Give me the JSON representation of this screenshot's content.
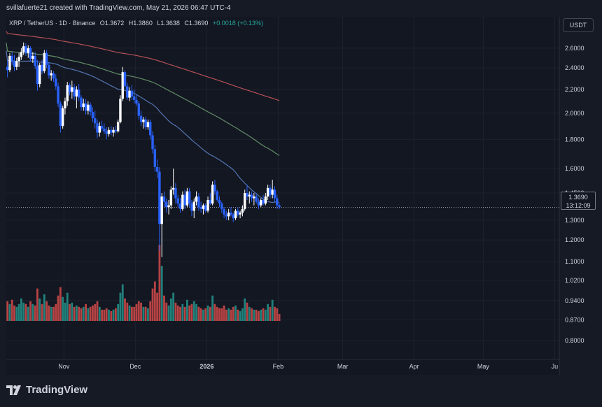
{
  "header": {
    "attribution": "svillafuerte21 created with TradingView.com, May 21, 2026 06:47 UTC-4"
  },
  "legend": {
    "symbol": "XRP / TetherUS · 1D · Binance",
    "open": "O1.3672",
    "high": "H1.3860",
    "low": "L1.3638",
    "close": "C1.3690",
    "change": "+0.0018 (+0.13%)"
  },
  "currency_button": "USDT",
  "price_tag": {
    "price": "1.3690",
    "countdown": "13:12:09"
  },
  "logo_text": "TradingView",
  "colors": {
    "background": "#131722",
    "up_candle": "#ffffff",
    "down_candle": "#2962ff",
    "up_volume": "#26a69a",
    "down_volume": "#ef5350",
    "ma_short": "#5b7fc0",
    "ma_mid": "#6a9a6e",
    "ma_long": "#c7575a",
    "grid": "#1e222d",
    "text": "#d1d4dc"
  },
  "chart_data": {
    "type": "candlestick",
    "title": "XRP / TetherUS · 1D · Binance",
    "y_scale": "log",
    "ylim": [
      0.75,
      2.95
    ],
    "y_ticks": [
      2.6,
      2.4,
      2.2,
      2.0,
      1.8,
      1.6,
      1.45,
      1.3,
      1.2,
      1.1,
      1.02,
      0.94,
      0.87,
      0.8
    ],
    "y_tick_labels": [
      "2.6000",
      "2.4000",
      "2.2000",
      "2.0000",
      "1.8000",
      "1.6000",
      "1.4500",
      "1.3000",
      "1.2000",
      "1.1000",
      "1.0200",
      "0.9400",
      "0.8700",
      "0.8000"
    ],
    "x_labels": [
      "Nov",
      "Dec",
      "2026",
      "Feb",
      "Mar",
      "Apr",
      "May",
      "Ju"
    ],
    "x_label_days": [
      25,
      56,
      87,
      118,
      146,
      177,
      207,
      238
    ],
    "x_range_days": [
      0,
      240
    ],
    "grid": true,
    "ohlc": [
      [
        2.41,
        2.47,
        2.31,
        2.38
      ],
      [
        2.38,
        2.55,
        2.36,
        2.52
      ],
      [
        2.52,
        2.56,
        2.43,
        2.46
      ],
      [
        2.46,
        2.53,
        2.37,
        2.41
      ],
      [
        2.41,
        2.5,
        2.38,
        2.47
      ],
      [
        2.47,
        2.55,
        2.41,
        2.51
      ],
      [
        2.51,
        2.6,
        2.48,
        2.56
      ],
      [
        2.56,
        2.66,
        2.53,
        2.62
      ],
      [
        2.62,
        2.65,
        2.52,
        2.55
      ],
      [
        2.55,
        2.63,
        2.5,
        2.6
      ],
      [
        2.6,
        2.62,
        2.46,
        2.49
      ],
      [
        2.49,
        2.56,
        2.45,
        2.52
      ],
      [
        2.52,
        2.56,
        2.39,
        2.42
      ],
      [
        2.42,
        2.48,
        2.19,
        2.25
      ],
      [
        2.25,
        2.45,
        2.22,
        2.43
      ],
      [
        2.43,
        2.48,
        2.34,
        2.37
      ],
      [
        2.37,
        2.58,
        2.35,
        2.55
      ],
      [
        2.55,
        2.58,
        2.4,
        2.43
      ],
      [
        2.43,
        2.46,
        2.3,
        2.33
      ],
      [
        2.33,
        2.38,
        2.28,
        2.35
      ],
      [
        2.35,
        2.37,
        2.27,
        2.3
      ],
      [
        2.3,
        2.34,
        2.2,
        2.23
      ],
      [
        2.23,
        2.26,
        2.05,
        2.08
      ],
      [
        2.08,
        2.1,
        1.85,
        1.9
      ],
      [
        1.9,
        2.06,
        1.88,
        2.04
      ],
      [
        2.04,
        2.13,
        1.99,
        2.1
      ],
      [
        2.1,
        2.27,
        2.06,
        2.24
      ],
      [
        2.24,
        2.26,
        2.15,
        2.18
      ],
      [
        2.18,
        2.28,
        2.12,
        2.22
      ],
      [
        2.22,
        2.25,
        2.11,
        2.14
      ],
      [
        2.14,
        2.23,
        2.04,
        2.2
      ],
      [
        2.2,
        2.25,
        2.1,
        2.13
      ],
      [
        2.13,
        2.15,
        2.02,
        2.05
      ],
      [
        2.05,
        2.12,
        2.02,
        2.08
      ],
      [
        2.08,
        2.12,
        1.99,
        2.02
      ],
      [
        2.02,
        2.1,
        1.99,
        2.07
      ],
      [
        2.07,
        2.09,
        1.98,
        2.01
      ],
      [
        2.01,
        2.05,
        1.93,
        1.96
      ],
      [
        1.96,
        2.02,
        1.88,
        1.92
      ],
      [
        1.92,
        1.95,
        1.81,
        1.85
      ],
      [
        1.85,
        1.93,
        1.82,
        1.9
      ],
      [
        1.9,
        1.94,
        1.86,
        1.88
      ],
      [
        1.88,
        1.92,
        1.84,
        1.86
      ],
      [
        1.86,
        1.89,
        1.8,
        1.84
      ],
      [
        1.84,
        1.89,
        1.82,
        1.87
      ],
      [
        1.87,
        1.9,
        1.83,
        1.85
      ],
      [
        1.85,
        1.89,
        1.82,
        1.87
      ],
      [
        1.87,
        1.9,
        1.84,
        1.86
      ],
      [
        1.86,
        1.95,
        1.85,
        1.93
      ],
      [
        1.93,
        2.15,
        1.92,
        2.12
      ],
      [
        2.12,
        2.41,
        2.1,
        2.36
      ],
      [
        2.36,
        2.38,
        2.2,
        2.23
      ],
      [
        2.23,
        2.26,
        2.11,
        2.13
      ],
      [
        2.13,
        2.22,
        2.1,
        2.19
      ],
      [
        2.19,
        2.24,
        2.11,
        2.14
      ],
      [
        2.14,
        2.2,
        2.08,
        2.11
      ],
      [
        2.11,
        2.16,
        2.06,
        2.08
      ],
      [
        2.08,
        2.1,
        1.95,
        1.98
      ],
      [
        1.98,
        2.02,
        1.9,
        1.93
      ],
      [
        1.93,
        1.97,
        1.88,
        1.95
      ],
      [
        1.95,
        1.97,
        1.87,
        1.89
      ],
      [
        1.89,
        1.95,
        1.87,
        1.93
      ],
      [
        1.93,
        1.95,
        1.8,
        1.83
      ],
      [
        1.83,
        1.86,
        1.7,
        1.73
      ],
      [
        1.73,
        1.76,
        1.58,
        1.61
      ],
      [
        1.61,
        1.66,
        1.54,
        1.58
      ],
      [
        1.58,
        1.61,
        1.15,
        1.28
      ],
      [
        1.28,
        1.45,
        1.12,
        1.43
      ],
      [
        1.43,
        1.46,
        1.37,
        1.4
      ],
      [
        1.4,
        1.42,
        1.34,
        1.37
      ],
      [
        1.37,
        1.41,
        1.33,
        1.38
      ],
      [
        1.38,
        1.49,
        1.36,
        1.47
      ],
      [
        1.47,
        1.6,
        1.44,
        1.48
      ],
      [
        1.48,
        1.51,
        1.39,
        1.42
      ],
      [
        1.42,
        1.44,
        1.37,
        1.39
      ],
      [
        1.39,
        1.42,
        1.34,
        1.36
      ],
      [
        1.36,
        1.46,
        1.35,
        1.44
      ],
      [
        1.44,
        1.47,
        1.36,
        1.38
      ],
      [
        1.38,
        1.48,
        1.37,
        1.46
      ],
      [
        1.46,
        1.48,
        1.37,
        1.39
      ],
      [
        1.39,
        1.41,
        1.32,
        1.35
      ],
      [
        1.35,
        1.42,
        1.31,
        1.4
      ],
      [
        1.4,
        1.46,
        1.38,
        1.43
      ],
      [
        1.43,
        1.45,
        1.35,
        1.37
      ],
      [
        1.37,
        1.4,
        1.34,
        1.36
      ],
      [
        1.36,
        1.39,
        1.33,
        1.38
      ],
      [
        1.38,
        1.39,
        1.34,
        1.35
      ],
      [
        1.35,
        1.43,
        1.34,
        1.41
      ],
      [
        1.41,
        1.45,
        1.38,
        1.39
      ],
      [
        1.39,
        1.52,
        1.38,
        1.5
      ],
      [
        1.5,
        1.53,
        1.44,
        1.46
      ],
      [
        1.46,
        1.47,
        1.4,
        1.41
      ],
      [
        1.41,
        1.43,
        1.37,
        1.39
      ],
      [
        1.39,
        1.4,
        1.34,
        1.36
      ],
      [
        1.36,
        1.37,
        1.31,
        1.33
      ],
      [
        1.33,
        1.35,
        1.3,
        1.32
      ],
      [
        1.32,
        1.36,
        1.3,
        1.34
      ],
      [
        1.34,
        1.37,
        1.32,
        1.33
      ],
      [
        1.33,
        1.34,
        1.29,
        1.31
      ],
      [
        1.31,
        1.36,
        1.3,
        1.35
      ],
      [
        1.35,
        1.37,
        1.32,
        1.33
      ],
      [
        1.33,
        1.35,
        1.31,
        1.34
      ],
      [
        1.34,
        1.38,
        1.32,
        1.36
      ],
      [
        1.36,
        1.47,
        1.35,
        1.45
      ],
      [
        1.45,
        1.5,
        1.41,
        1.43
      ],
      [
        1.43,
        1.46,
        1.39,
        1.44
      ],
      [
        1.44,
        1.46,
        1.4,
        1.42
      ],
      [
        1.42,
        1.45,
        1.38,
        1.43
      ],
      [
        1.43,
        1.45,
        1.39,
        1.4
      ],
      [
        1.4,
        1.42,
        1.36,
        1.38
      ],
      [
        1.38,
        1.42,
        1.37,
        1.41
      ],
      [
        1.41,
        1.44,
        1.38,
        1.39
      ],
      [
        1.39,
        1.45,
        1.38,
        1.43
      ],
      [
        1.43,
        1.5,
        1.41,
        1.48
      ],
      [
        1.48,
        1.5,
        1.42,
        1.44
      ],
      [
        1.44,
        1.53,
        1.42,
        1.47
      ],
      [
        1.47,
        1.49,
        1.4,
        1.42
      ],
      [
        1.42,
        1.44,
        1.36,
        1.38
      ],
      [
        1.38,
        1.39,
        1.36,
        1.37
      ]
    ],
    "volume": [
      1.4,
      1.2,
      1.5,
      1.1,
      1.0,
      1.2,
      1.6,
      1.3,
      1.2,
      1.0,
      1.4,
      1.2,
      1.1,
      2.3,
      1.6,
      1.2,
      1.9,
      1.4,
      1.1,
      1.0,
      1.0,
      1.2,
      1.8,
      2.4,
      1.7,
      1.3,
      2.0,
      1.2,
      1.3,
      1.0,
      1.1,
      1.0,
      0.9,
      1.0,
      1.2,
      0.9,
      1.0,
      1.1,
      1.2,
      1.4,
      1.0,
      0.8,
      0.8,
      0.9,
      0.8,
      0.7,
      0.8,
      0.9,
      1.2,
      2.0,
      2.6,
      1.6,
      1.3,
      1.1,
      1.0,
      1.0,
      1.2,
      1.4,
      1.3,
      1.0,
      1.0,
      0.9,
      1.4,
      2.3,
      2.8,
      2.0,
      5.4,
      3.9,
      1.8,
      1.3,
      1.1,
      1.6,
      2.0,
      1.3,
      1.1,
      1.0,
      1.2,
      1.0,
      1.5,
      1.1,
      1.2,
      1.4,
      1.2,
      1.0,
      0.9,
      0.8,
      0.9,
      1.1,
      1.0,
      1.8,
      1.2,
      1.0,
      0.9,
      0.9,
      1.1,
      0.8,
      0.9,
      0.8,
      1.0,
      1.1,
      0.8,
      0.7,
      0.9,
      1.6,
      1.3,
      1.0,
      0.9,
      0.8,
      0.8,
      0.7,
      0.8,
      0.9,
      0.8,
      1.2,
      1.0,
      1.5,
      1.0,
      0.9,
      0.5
    ],
    "moving_averages": [
      {
        "period": 50,
        "color": "#5b7fc0"
      },
      {
        "period": 100,
        "color": "#6a9a6e"
      },
      {
        "period": 200,
        "color": "#c7575a"
      }
    ],
    "last_price": 1.369
  }
}
